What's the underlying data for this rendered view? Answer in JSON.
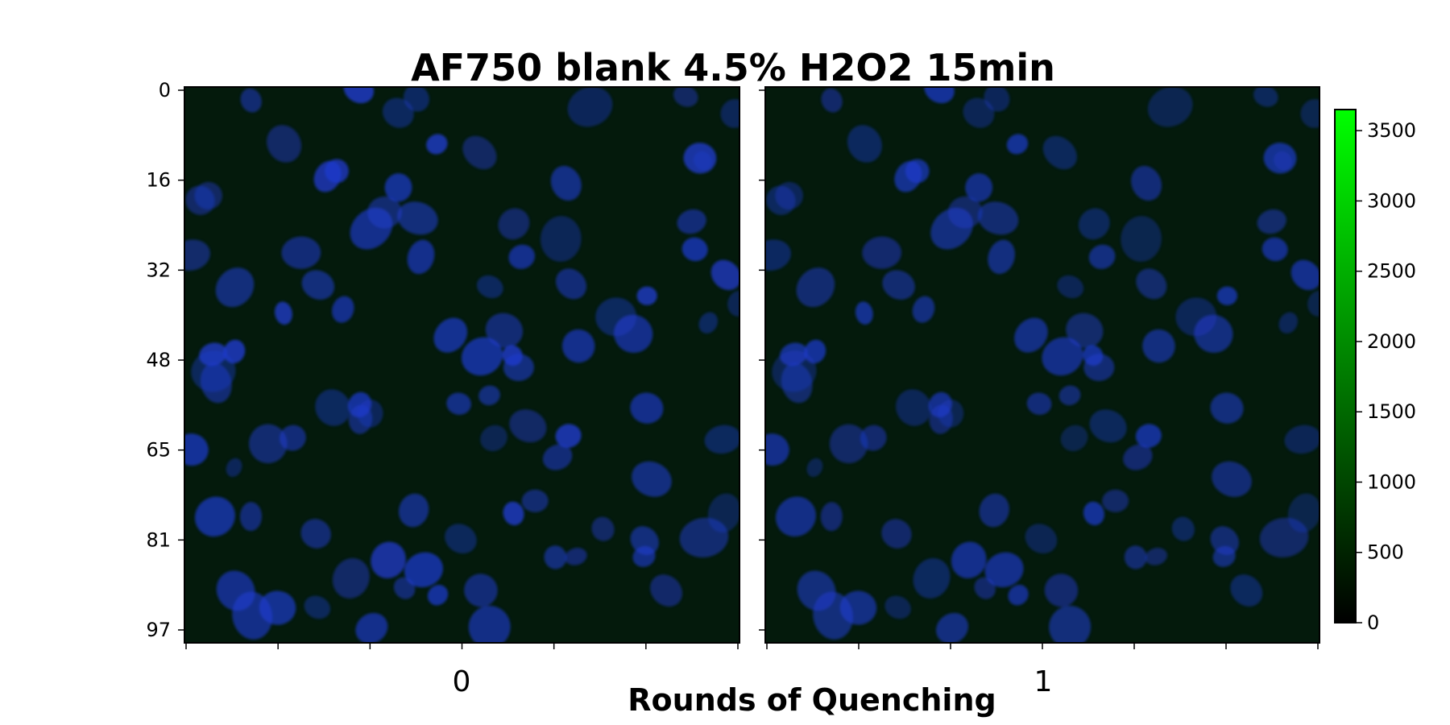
{
  "chart_data": {
    "type": "heatmap",
    "title": "AF750 blank 4.5% H2O2 15min",
    "xlabel": "Rounds of Quenching",
    "panels": [
      {
        "label": "0"
      },
      {
        "label": "1"
      }
    ],
    "y_ticks": [
      "0",
      "16",
      "32",
      "48",
      "65",
      "81",
      "97"
    ],
    "colorbar": {
      "ticks": [
        "0",
        "500",
        "1000",
        "1500",
        "2000",
        "2500",
        "3000",
        "3500"
      ],
      "range": [
        0,
        3650
      ],
      "colormap": [
        "#000000",
        "#00ff00"
      ]
    },
    "colors": {
      "background": "#041a0c",
      "nuclei": "#1f3cd0"
    }
  }
}
